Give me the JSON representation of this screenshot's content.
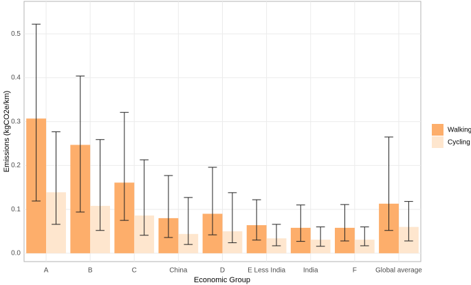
{
  "chart_data": {
    "type": "bar",
    "x_label": "Economic Group",
    "y_label": "Emissions (kgCO2e/km)",
    "categories": [
      "A",
      "B",
      "C",
      "China",
      "D",
      "E Less India",
      "India",
      "F",
      "Global average"
    ],
    "series": [
      {
        "name": "Walking",
        "color": "#fdae6b",
        "values": [
          0.307,
          0.247,
          0.161,
          0.08,
          0.09,
          0.064,
          0.058,
          0.058,
          0.113
        ],
        "error_low": [
          0.119,
          0.094,
          0.075,
          0.036,
          0.042,
          0.03,
          0.027,
          0.028,
          0.052
        ],
        "error_high": [
          0.522,
          0.404,
          0.321,
          0.177,
          0.196,
          0.122,
          0.11,
          0.111,
          0.265
        ]
      },
      {
        "name": "Cycling",
        "color": "#fee6ce",
        "values": [
          0.139,
          0.108,
          0.086,
          0.044,
          0.05,
          0.034,
          0.031,
          0.031,
          0.06
        ],
        "error_low": [
          0.066,
          0.052,
          0.041,
          0.02,
          0.024,
          0.017,
          0.016,
          0.017,
          0.028
        ],
        "error_high": [
          0.277,
          0.259,
          0.213,
          0.127,
          0.138,
          0.066,
          0.06,
          0.06,
          0.118
        ]
      }
    ],
    "ylim": [
      -0.019,
      0.574
    ],
    "yticks": [
      {
        "value": 0,
        "label": "0.0"
      },
      0.1,
      0.2,
      0.3,
      0.4,
      0.5
    ],
    "grid": true,
    "legend_position": "right"
  }
}
